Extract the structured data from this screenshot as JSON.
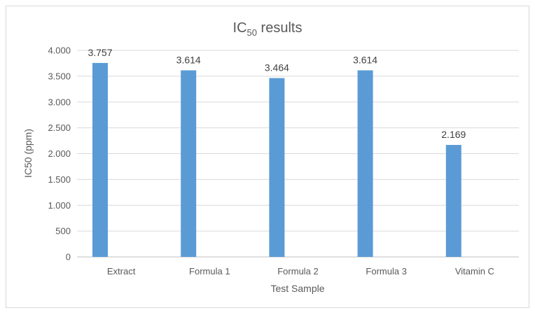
{
  "chart_data": {
    "type": "bar",
    "title": {
      "main": "IC",
      "subscript": "50",
      "suffix": " results"
    },
    "xlabel": "Test Sample",
    "ylabel": "IC50 (ppm)",
    "categories": [
      "Extract",
      "Formula 1",
      "Formula 2",
      "Formula 3",
      "Vitamin C"
    ],
    "values": [
      3757,
      3614,
      3464,
      3614,
      2169
    ],
    "data_labels": [
      "3.757",
      "3.614",
      "3.464",
      "3.614",
      "2.169"
    ],
    "yticks": [
      0,
      500,
      1000,
      1500,
      2000,
      2500,
      3000,
      3500,
      4000
    ],
    "ytick_labels": [
      "0",
      "500",
      "1.000",
      "1.500",
      "2.000",
      "2.500",
      "3.000",
      "3.500",
      "4.000"
    ],
    "ylim": [
      0,
      4000
    ],
    "grid": true,
    "legend": "none",
    "colors": {
      "bar": "#5b9bd5",
      "grid": "#d9d9d9",
      "axis": "#bfbfbf"
    }
  }
}
